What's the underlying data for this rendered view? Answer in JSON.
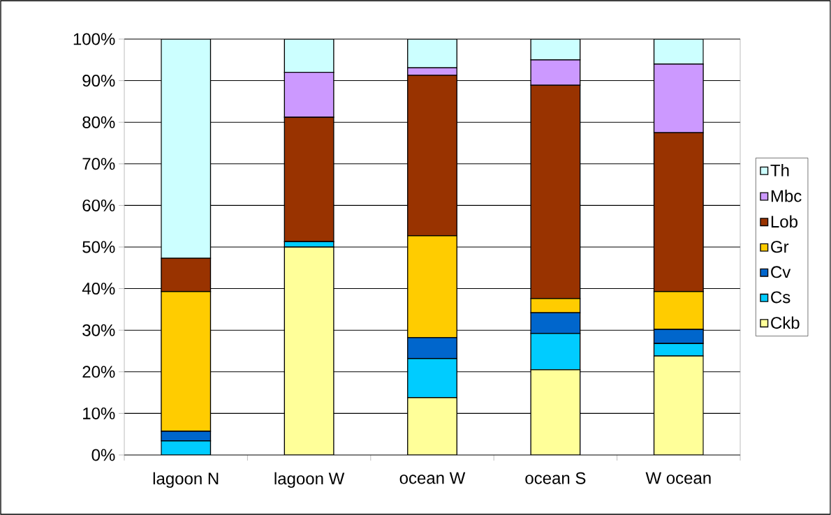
{
  "chart_data": {
    "type": "bar",
    "stacked": true,
    "categories": [
      "lagoon N",
      "lagoon W",
      "ocean W",
      "ocean S",
      "W ocean"
    ],
    "series": [
      {
        "name": "Ckb",
        "color": "#ffff99",
        "values": [
          0,
          50.0,
          13.8,
          20.5,
          23.8
        ]
      },
      {
        "name": "Cs",
        "color": "#00ccff",
        "values": [
          3.4,
          1.3,
          9.4,
          8.7,
          3.0
        ]
      },
      {
        "name": "Cv",
        "color": "#0066cc",
        "values": [
          2.3,
          0,
          5.0,
          5.0,
          3.4
        ]
      },
      {
        "name": "Gr",
        "color": "#ffcc00",
        "values": [
          33.6,
          0,
          24.5,
          3.4,
          9.1
        ]
      },
      {
        "name": "Lob",
        "color": "#993300",
        "values": [
          8.0,
          29.9,
          38.6,
          51.3,
          38.2
        ]
      },
      {
        "name": "Mbc",
        "color": "#cc99ff",
        "values": [
          0,
          10.8,
          1.8,
          6.1,
          16.5
        ]
      },
      {
        "name": "Th",
        "color": "#ccffff",
        "values": [
          52.7,
          8.0,
          6.9,
          5.0,
          6.0
        ]
      }
    ],
    "ylim": [
      0,
      100
    ],
    "yticks": [
      {
        "value": 0,
        "label": "0%"
      },
      {
        "value": 10,
        "label": "10%"
      },
      {
        "value": 20,
        "label": "20%"
      },
      {
        "value": 30,
        "label": "30%"
      },
      {
        "value": 40,
        "label": "40%"
      },
      {
        "value": 50,
        "label": "50%"
      },
      {
        "value": 60,
        "label": "60%"
      },
      {
        "value": 70,
        "label": "70%"
      },
      {
        "value": 80,
        "label": "80%"
      },
      {
        "value": 90,
        "label": "90%"
      },
      {
        "value": 100,
        "label": "100%"
      }
    ],
    "grid": "y",
    "legend": "right"
  }
}
